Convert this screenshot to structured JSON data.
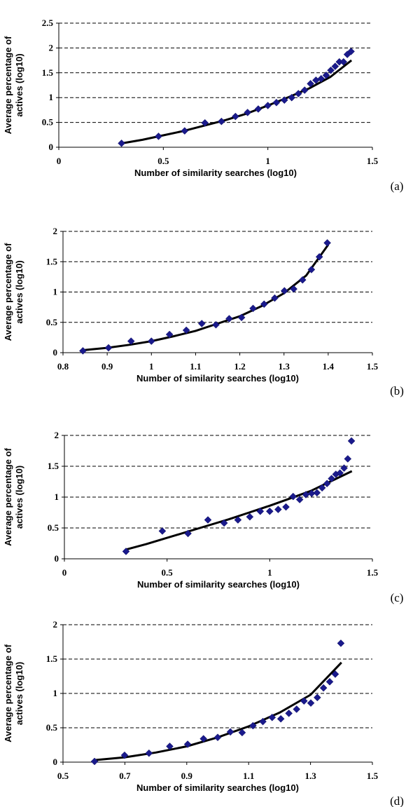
{
  "chart_data": [
    {
      "type": "scatter",
      "panel_label": "(a)",
      "xlabel": "Number of similarity searches (log10)",
      "ylabel": [
        "Average percentage of",
        "actives (log10)"
      ],
      "x_ticks": [
        "0",
        "0.5",
        "1",
        "1.5"
      ],
      "y_ticks": [
        "0",
        "0.5",
        "1",
        "1.5",
        "2",
        "2.5"
      ],
      "xlim": [
        0,
        1.5
      ],
      "ylim": [
        0,
        2.5
      ],
      "grid": "horizontal dashed",
      "marker_color": "#1a1a8c",
      "series": [
        {
          "x": [
            0.3,
            0.477,
            0.602,
            0.699,
            0.778,
            0.845,
            0.903,
            0.954,
            1.0,
            1.041,
            1.079,
            1.114,
            1.146,
            1.176,
            1.204,
            1.23,
            1.255,
            1.279,
            1.301,
            1.322,
            1.342,
            1.362,
            1.38,
            1.398
          ],
          "y": [
            0.08,
            0.22,
            0.33,
            0.49,
            0.52,
            0.62,
            0.7,
            0.77,
            0.84,
            0.9,
            0.95,
            1.0,
            1.08,
            1.15,
            1.28,
            1.35,
            1.38,
            1.45,
            1.55,
            1.63,
            1.72,
            1.72,
            1.87,
            1.93
          ]
        }
      ],
      "trendline": {
        "x": [
          0.29,
          0.4,
          0.5,
          0.6,
          0.7,
          0.8,
          0.9,
          1.0,
          1.1,
          1.2,
          1.3,
          1.4
        ],
        "y": [
          0.07,
          0.15,
          0.24,
          0.33,
          0.44,
          0.55,
          0.68,
          0.84,
          1.01,
          1.19,
          1.42,
          1.75
        ]
      }
    },
    {
      "type": "scatter",
      "panel_label": "(b)",
      "xlabel": "Number of similarity searches (log10)",
      "ylabel": [
        "Average percentage of",
        "actives (log10)"
      ],
      "x_ticks": [
        "0.8",
        "0.9",
        "1",
        "1.1",
        "1.2",
        "1.3",
        "1.4",
        "1.5"
      ],
      "y_ticks": [
        "0",
        "0.5",
        "1",
        "1.5",
        "2"
      ],
      "xlim": [
        0.8,
        1.5
      ],
      "ylim": [
        0,
        2
      ],
      "grid": "horizontal dashed",
      "marker_color": "#1a1a8c",
      "series": [
        {
          "x": [
            0.845,
            0.903,
            0.954,
            1.0,
            1.041,
            1.079,
            1.114,
            1.146,
            1.176,
            1.204,
            1.23,
            1.255,
            1.279,
            1.301,
            1.322,
            1.342,
            1.362,
            1.38,
            1.398
          ],
          "y": [
            0.03,
            0.08,
            0.19,
            0.19,
            0.3,
            0.37,
            0.48,
            0.46,
            0.56,
            0.58,
            0.73,
            0.8,
            0.9,
            1.02,
            1.05,
            1.2,
            1.37,
            1.58,
            1.81
          ]
        }
      ],
      "trendline": {
        "x": [
          0.845,
          0.9,
          0.95,
          1.0,
          1.05,
          1.1,
          1.15,
          1.2,
          1.25,
          1.3,
          1.35,
          1.4
        ],
        "y": [
          0.04,
          0.08,
          0.13,
          0.19,
          0.27,
          0.36,
          0.48,
          0.6,
          0.77,
          0.98,
          1.27,
          1.78
        ]
      }
    },
    {
      "type": "scatter",
      "panel_label": "(c)",
      "xlabel": "Number of similarity searches (log10)",
      "ylabel": [
        "Average percentage of",
        "actives (log10)"
      ],
      "x_ticks": [
        "0",
        "0.5",
        "1",
        "1.5"
      ],
      "y_ticks": [
        "0",
        "0.5",
        "1",
        "1.5",
        "2"
      ],
      "xlim": [
        0,
        1.5
      ],
      "ylim": [
        0,
        2
      ],
      "grid": "horizontal dashed",
      "marker_color": "#1a1a8c",
      "series": [
        {
          "x": [
            0.3,
            0.477,
            0.602,
            0.699,
            0.778,
            0.845,
            0.903,
            0.954,
            1.0,
            1.041,
            1.079,
            1.114,
            1.146,
            1.176,
            1.204,
            1.23,
            1.255,
            1.279,
            1.301,
            1.322,
            1.342,
            1.362,
            1.38,
            1.398
          ],
          "y": [
            0.12,
            0.45,
            0.41,
            0.63,
            0.58,
            0.63,
            0.68,
            0.77,
            0.77,
            0.8,
            0.84,
            1.01,
            0.96,
            1.04,
            1.06,
            1.07,
            1.15,
            1.22,
            1.3,
            1.37,
            1.39,
            1.47,
            1.62,
            1.91
          ]
        }
      ],
      "trendline": {
        "x": [
          0.3,
          0.4,
          0.5,
          0.6,
          0.7,
          0.8,
          0.9,
          1.0,
          1.1,
          1.2,
          1.3,
          1.4
        ],
        "y": [
          0.15,
          0.24,
          0.34,
          0.44,
          0.54,
          0.64,
          0.75,
          0.86,
          0.98,
          1.1,
          1.26,
          1.42
        ]
      }
    },
    {
      "type": "scatter",
      "panel_label": "(d)",
      "xlabel": "Number of similarity searches (log10)",
      "ylabel": [
        "Average percentage of",
        "actives (log10)"
      ],
      "x_ticks": [
        "0.5",
        "0.7",
        "0.9",
        "1.1",
        "1.3",
        "1.5"
      ],
      "y_ticks": [
        "0",
        "0.5",
        "1",
        "1.5",
        "2"
      ],
      "xlim": [
        0.5,
        1.5
      ],
      "ylim": [
        0,
        2
      ],
      "grid": "horizontal dashed",
      "marker_color": "#1a1a8c",
      "series": [
        {
          "x": [
            0.602,
            0.699,
            0.778,
            0.845,
            0.903,
            0.954,
            1.0,
            1.041,
            1.079,
            1.114,
            1.146,
            1.176,
            1.204,
            1.23,
            1.255,
            1.279,
            1.301,
            1.322,
            1.342,
            1.362,
            1.38,
            1.398
          ],
          "y": [
            0.01,
            0.1,
            0.13,
            0.23,
            0.26,
            0.34,
            0.36,
            0.44,
            0.43,
            0.53,
            0.59,
            0.65,
            0.63,
            0.71,
            0.77,
            0.89,
            0.86,
            0.94,
            1.08,
            1.17,
            1.28,
            1.73
          ]
        }
      ],
      "trendline": {
        "x": [
          0.602,
          0.7,
          0.8,
          0.9,
          1.0,
          1.1,
          1.2,
          1.3,
          1.4
        ],
        "y": [
          0.03,
          0.07,
          0.14,
          0.23,
          0.36,
          0.52,
          0.72,
          0.98,
          1.45
        ]
      }
    }
  ]
}
